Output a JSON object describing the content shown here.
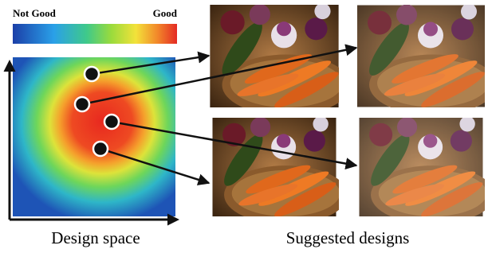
{
  "color_bar": {
    "low_label": "Not Good",
    "high_label": "Good"
  },
  "captions": {
    "design_space": "Design space",
    "suggested_designs": "Suggested designs"
  }
}
